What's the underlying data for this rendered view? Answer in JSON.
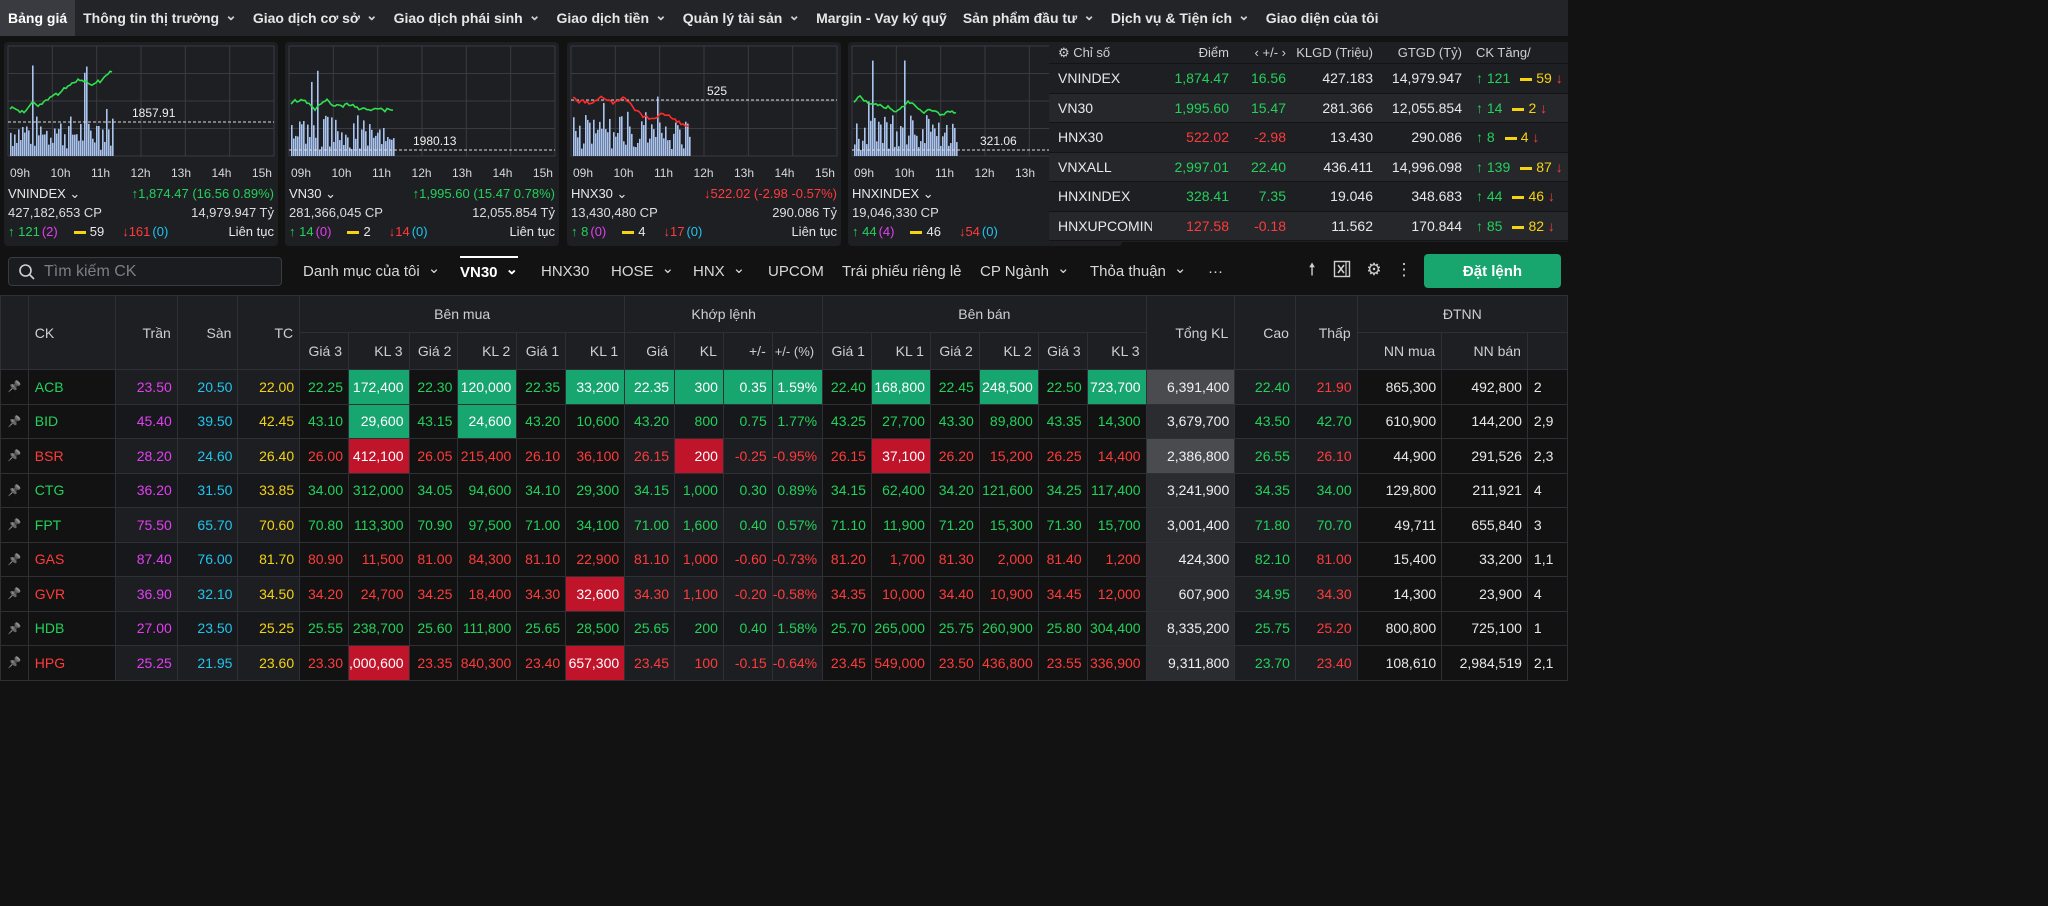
{
  "nav": {
    "items": [
      {
        "label": "Bảng giá",
        "dropdown": false,
        "active": true
      },
      {
        "label": "Thông tin thị trường",
        "dropdown": true
      },
      {
        "label": "Giao dịch cơ sở",
        "dropdown": true
      },
      {
        "label": "Giao dịch phái sinh",
        "dropdown": true
      },
      {
        "label": "Giao dịch tiền",
        "dropdown": true
      },
      {
        "label": "Quản lý tài sản",
        "dropdown": true
      },
      {
        "label": "Margin - Vay ký quỹ",
        "dropdown": false
      },
      {
        "label": "Sản phẩm đầu tư",
        "dropdown": true
      },
      {
        "label": "Dịch vụ & Tiện ích",
        "dropdown": true
      },
      {
        "label": "Giao diện của tôi",
        "dropdown": false
      }
    ]
  },
  "hours": [
    "09h",
    "10h",
    "11h",
    "12h",
    "13h",
    "14h",
    "15h"
  ],
  "mini_charts": [
    {
      "name": "VNINDEX",
      "ref_label": "1857.91",
      "value": "1,874.47 (16.56 0.89%)",
      "dir": "up",
      "volume": "427,182,653 CP",
      "value_ty": "14,979.947 Tỷ",
      "up": "121",
      "up_ceil": "(2)",
      "flat": "59",
      "down": "161",
      "down_floor": "(0)",
      "status": "Liên tục",
      "line_color": "#2ee04f"
    },
    {
      "name": "VN30",
      "ref_label": "1980.13",
      "value": "1,995.60 (15.47 0.78%)",
      "dir": "up",
      "volume": "281,366,045 CP",
      "value_ty": "12,055.854 Tỷ",
      "up": "14",
      "up_ceil": "(0)",
      "flat": "2",
      "down": "14",
      "down_floor": "(0)",
      "status": "Liên tục",
      "line_color": "#2ee04f"
    },
    {
      "name": "HNX30",
      "ref_label": "525",
      "value": "522.02 (-2.98 -0.57%)",
      "dir": "down",
      "volume": "13,430,480 CP",
      "value_ty": "290.086 Tỷ",
      "up": "8",
      "up_ceil": "(0)",
      "flat": "4",
      "down": "17",
      "down_floor": "(0)",
      "status": "Liên tục",
      "line_color": "#ff2a2a"
    },
    {
      "name": "HNXINDEX",
      "ref_label": "321.06",
      "value": "328.41",
      "dir": "up",
      "volume": "19,046,330 CP",
      "value_ty": "",
      "up": "44",
      "up_ceil": "(4)",
      "flat": "46",
      "down": "54",
      "down_floor": "(0)",
      "status": "",
      "line_color": "#2ee04f"
    }
  ],
  "index_table": {
    "headers": {
      "name": "Chỉ số",
      "point": "Điểm",
      "change": "+/-",
      "kl": "KLGD (Triệu)",
      "gt": "GTGD (Tỷ)",
      "ck": "CK Tăng/"
    },
    "rows": [
      {
        "name": "VNINDEX",
        "point": "1,874.47",
        "change": "16.56",
        "kl": "427.183",
        "gt": "14,979.947",
        "up": "121",
        "flat": "59",
        "dir": "up"
      },
      {
        "name": "VN30",
        "point": "1,995.60",
        "change": "15.47",
        "kl": "281.366",
        "gt": "12,055.854",
        "up": "14",
        "flat": "2",
        "dir": "up"
      },
      {
        "name": "HNX30",
        "point": "522.02",
        "change": "-2.98",
        "kl": "13.430",
        "gt": "290.086",
        "up": "8",
        "flat": "4",
        "dir": "down"
      },
      {
        "name": "VNXALL",
        "point": "2,997.01",
        "change": "22.40",
        "kl": "436.411",
        "gt": "14,996.098",
        "up": "139",
        "flat": "87",
        "dir": "up"
      },
      {
        "name": "HNXINDEX",
        "point": "328.41",
        "change": "7.35",
        "kl": "19.046",
        "gt": "348.683",
        "up": "44",
        "flat": "46",
        "dir": "up"
      },
      {
        "name": "HNXUPCOMINDEX",
        "point": "127.58",
        "change": "-0.18",
        "kl": "11.562",
        "gt": "170.844",
        "up": "85",
        "flat": "82",
        "dir": "down"
      }
    ]
  },
  "toolbar": {
    "search_placeholder": "Tìm kiếm CK",
    "tabs": [
      {
        "label": "Danh mục của tôi",
        "dropdown": true
      },
      {
        "label": "VN30",
        "dropdown": true,
        "active": true
      },
      {
        "label": "HNX30",
        "dropdown": false
      },
      {
        "label": "HOSE",
        "dropdown": true
      },
      {
        "label": "HNX",
        "dropdown": true
      },
      {
        "label": "UPCOM",
        "dropdown": false
      },
      {
        "label": "Trái phiếu riêng lẻ",
        "dropdown": false
      },
      {
        "label": "CP Ngành",
        "dropdown": true
      },
      {
        "label": "Thỏa thuận",
        "dropdown": true
      },
      {
        "label": "···",
        "dropdown": false
      }
    ],
    "order_label": "Đặt lệnh"
  },
  "board": {
    "group_headers": {
      "buy": "Bên mua",
      "match": "Khớp lệnh",
      "sell": "Bên bán",
      "foreign": "ĐTNN"
    },
    "col_headers": {
      "ck": "CK",
      "tran": "Trần",
      "san": "Sàn",
      "tc": "TC",
      "g3": "Giá 3",
      "kl3": "KL 3",
      "g2": "Giá 2",
      "kl2": "KL 2",
      "g1": "Giá 1",
      "kl1": "KL 1",
      "gia": "Giá",
      "kl": "KL",
      "chg": "+/-",
      "pct": "+/- (%)",
      "total": "Tổng KL",
      "cao": "Cao",
      "thap": "Thấp",
      "nnmua": "NN mua",
      "nnban": "NN bán"
    },
    "rows": [
      {
        "sym": "ACB",
        "c": "up",
        "tran": "23.50",
        "san": "20.50",
        "tc": "22.00",
        "b3": [
          "22.25",
          "172,400",
          "up"
        ],
        "b2": [
          "22.30",
          "120,000",
          "up"
        ],
        "b1": [
          "22.35",
          "33,200",
          "up"
        ],
        "m": [
          "22.35",
          "300",
          "0.35",
          "1.59%",
          "up"
        ],
        "s1": [
          "22.40",
          "168,800",
          "up"
        ],
        "s2": [
          "22.45",
          "248,500",
          "up"
        ],
        "s3": [
          "22.50",
          "723,700",
          "up"
        ],
        "total": "6,391,400",
        "cao": [
          "22.40",
          "up"
        ],
        "thap": [
          "21.90",
          "down"
        ],
        "nnmua": "865,300",
        "nnban": "492,800",
        "extra": "2",
        "hl": {
          "kl3": "up",
          "kl2": "up",
          "m": "up",
          "kl1": "up",
          "skl1": "up",
          "skl2": "up",
          "skl3": "up",
          "total": true
        }
      },
      {
        "sym": "BID",
        "c": "up",
        "tran": "45.40",
        "san": "39.50",
        "tc": "42.45",
        "b3": [
          "43.10",
          "29,600",
          "up"
        ],
        "b2": [
          "43.15",
          "24,600",
          "up"
        ],
        "b1": [
          "43.20",
          "10,600",
          "up"
        ],
        "m": [
          "43.20",
          "800",
          "0.75",
          "1.77%",
          "up"
        ],
        "s1": [
          "43.25",
          "27,700",
          "up"
        ],
        "s2": [
          "43.30",
          "89,800",
          "up"
        ],
        "s3": [
          "43.35",
          "14,300",
          "up"
        ],
        "total": "3,679,700",
        "cao": [
          "43.50",
          "up"
        ],
        "thap": [
          "42.70",
          "up"
        ],
        "nnmua": "610,900",
        "nnban": "144,200",
        "extra": "2,9",
        "hl": {
          "kl3": "up",
          "kl2": "up"
        }
      },
      {
        "sym": "BSR",
        "c": "down",
        "tran": "28.20",
        "san": "24.60",
        "tc": "26.40",
        "b3": [
          "26.00",
          "412,100",
          "down"
        ],
        "b2": [
          "26.05",
          "215,400",
          "down"
        ],
        "b1": [
          "26.10",
          "36,100",
          "down"
        ],
        "m": [
          "26.15",
          "200",
          "-0.25",
          "-0.95%",
          "down"
        ],
        "s1": [
          "26.15",
          "37,100",
          "down"
        ],
        "s2": [
          "26.20",
          "15,200",
          "down"
        ],
        "s3": [
          "26.25",
          "14,400",
          "down"
        ],
        "total": "2,386,800",
        "cao": [
          "26.55",
          "up"
        ],
        "thap": [
          "26.10",
          "down"
        ],
        "nnmua": "44,900",
        "nnban": "291,526",
        "extra": "2,3",
        "hl": {
          "kl3": "down",
          "mkl": "down",
          "skl1": "down",
          "total": true
        }
      },
      {
        "sym": "CTG",
        "c": "up",
        "tran": "36.20",
        "san": "31.50",
        "tc": "33.85",
        "b3": [
          "34.00",
          "312,000",
          "up"
        ],
        "b2": [
          "34.05",
          "94,600",
          "up"
        ],
        "b1": [
          "34.10",
          "29,300",
          "up"
        ],
        "m": [
          "34.15",
          "1,000",
          "0.30",
          "0.89%",
          "up"
        ],
        "s1": [
          "34.15",
          "62,400",
          "up"
        ],
        "s2": [
          "34.20",
          "121,600",
          "up"
        ],
        "s3": [
          "34.25",
          "117,400",
          "up"
        ],
        "total": "3,241,900",
        "cao": [
          "34.35",
          "up"
        ],
        "thap": [
          "34.00",
          "up"
        ],
        "nnmua": "129,800",
        "nnban": "211,921",
        "extra": "4",
        "hl": {}
      },
      {
        "sym": "FPT",
        "c": "up",
        "tran": "75.50",
        "san": "65.70",
        "tc": "70.60",
        "b3": [
          "70.80",
          "113,300",
          "up"
        ],
        "b2": [
          "70.90",
          "97,500",
          "up"
        ],
        "b1": [
          "71.00",
          "34,100",
          "up"
        ],
        "m": [
          "71.00",
          "1,600",
          "0.40",
          "0.57%",
          "up"
        ],
        "s1": [
          "71.10",
          "11,900",
          "up"
        ],
        "s2": [
          "71.20",
          "15,300",
          "up"
        ],
        "s3": [
          "71.30",
          "15,700",
          "up"
        ],
        "total": "3,001,400",
        "cao": [
          "71.80",
          "up"
        ],
        "thap": [
          "70.70",
          "up"
        ],
        "nnmua": "49,711",
        "nnban": "655,840",
        "extra": "3",
        "hl": {}
      },
      {
        "sym": "GAS",
        "c": "down",
        "tran": "87.40",
        "san": "76.00",
        "tc": "81.70",
        "b3": [
          "80.90",
          "11,500",
          "down"
        ],
        "b2": [
          "81.00",
          "84,300",
          "down"
        ],
        "b1": [
          "81.10",
          "22,900",
          "down"
        ],
        "m": [
          "81.10",
          "1,000",
          "-0.60",
          "-0.73%",
          "down"
        ],
        "s1": [
          "81.20",
          "1,700",
          "down"
        ],
        "s2": [
          "81.30",
          "2,000",
          "down"
        ],
        "s3": [
          "81.40",
          "1,200",
          "down"
        ],
        "total": "424,300",
        "cao": [
          "82.10",
          "up"
        ],
        "thap": [
          "81.00",
          "down"
        ],
        "nnmua": "15,400",
        "nnban": "33,200",
        "extra": "1,1",
        "hl": {}
      },
      {
        "sym": "GVR",
        "c": "down",
        "tran": "36.90",
        "san": "32.10",
        "tc": "34.50",
        "b3": [
          "34.20",
          "24,700",
          "down"
        ],
        "b2": [
          "34.25",
          "18,400",
          "down"
        ],
        "b1": [
          "34.30",
          "32,600",
          "down"
        ],
        "m": [
          "34.30",
          "1,100",
          "-0.20",
          "-0.58%",
          "down"
        ],
        "s1": [
          "34.35",
          "10,000",
          "down"
        ],
        "s2": [
          "34.40",
          "10,900",
          "down"
        ],
        "s3": [
          "34.45",
          "12,000",
          "down"
        ],
        "total": "607,900",
        "cao": [
          "34.95",
          "up"
        ],
        "thap": [
          "34.30",
          "down"
        ],
        "nnmua": "14,300",
        "nnban": "23,900",
        "extra": "4",
        "hl": {
          "kl1": "down"
        }
      },
      {
        "sym": "HDB",
        "c": "up",
        "tran": "27.00",
        "san": "23.50",
        "tc": "25.25",
        "b3": [
          "25.55",
          "238,700",
          "up"
        ],
        "b2": [
          "25.60",
          "111,800",
          "up"
        ],
        "b1": [
          "25.65",
          "28,500",
          "up"
        ],
        "m": [
          "25.65",
          "200",
          "0.40",
          "1.58%",
          "up"
        ],
        "s1": [
          "25.70",
          "265,000",
          "up"
        ],
        "s2": [
          "25.75",
          "260,900",
          "up"
        ],
        "s3": [
          "25.80",
          "304,400",
          "up"
        ],
        "total": "8,335,200",
        "cao": [
          "25.75",
          "up"
        ],
        "thap": [
          "25.20",
          "down"
        ],
        "nnmua": "800,800",
        "nnban": "725,100",
        "extra": "1",
        "hl": {}
      },
      {
        "sym": "HPG",
        "c": "down",
        "tran": "25.25",
        "san": "21.95",
        "tc": "23.60",
        "b3": [
          "23.30",
          ",000,600",
          "down"
        ],
        "b2": [
          "23.35",
          "840,300",
          "down"
        ],
        "b1": [
          "23.40",
          "657,300",
          "down"
        ],
        "m": [
          "23.45",
          "100",
          "-0.15",
          "-0.64%",
          "down"
        ],
        "s1": [
          "23.45",
          "549,000",
          "down"
        ],
        "s2": [
          "23.50",
          "436,800",
          "down"
        ],
        "s3": [
          "23.55",
          "336,900",
          "down"
        ],
        "total": "9,311,800",
        "cao": [
          "23.70",
          "up"
        ],
        "thap": [
          "23.40",
          "down"
        ],
        "nnmua": "108,610",
        "nnban": "2,984,519",
        "extra": "2,1",
        "hl": {
          "kl3": "down",
          "kl1": "down"
        }
      }
    ]
  },
  "colors": {
    "up": "#22d15b",
    "down": "#ff3b3b",
    "ref": "#f5d313",
    "ceil": "#e23ff2",
    "floor": "#20c5ee",
    "accent": "#19a56e"
  },
  "icons": [
    "search-icon",
    "chevron-down-icon",
    "gear-icon",
    "arrow-up-icon",
    "excel-icon",
    "more-vertical-icon",
    "pin-icon"
  ]
}
